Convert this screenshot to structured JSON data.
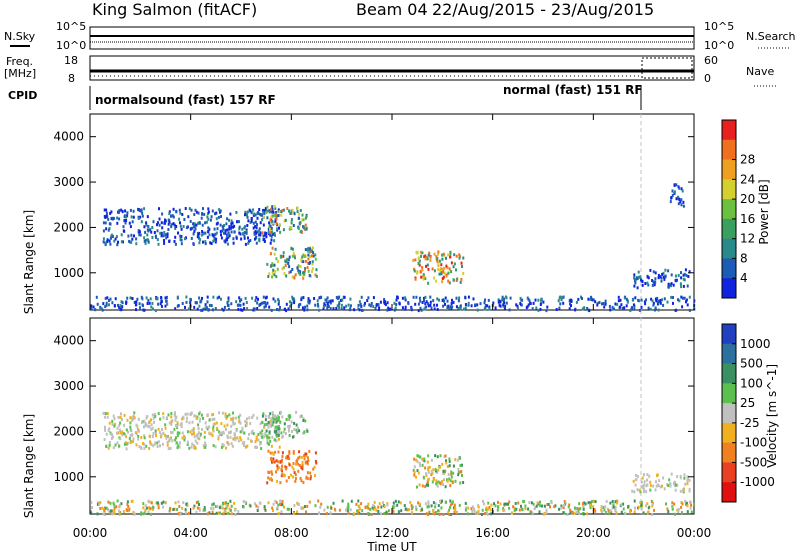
{
  "header": {
    "station": "King Salmon (fitACF)",
    "beam": "Beam 04",
    "dates": "22/Aug/2015 - 23/Aug/2015"
  },
  "left_labels": {
    "nsky": "N.Sky",
    "nsky_hi": "10^5",
    "nsky_lo": "10^0",
    "freq": "Freq.",
    "freq_unit": "[MHz]",
    "freq_hi": "18",
    "freq_lo": "8",
    "cpid": "CPID"
  },
  "right_labels": {
    "nsearch": "N.Search",
    "nsearch_hi": "10^5",
    "nsearch_lo": "10^0",
    "nave": "Nave",
    "nave_hi": "60",
    "nave_lo": "0"
  },
  "cpid_segments": [
    {
      "label": "normalsound (fast) 157 RF",
      "start_hour": 0
    },
    {
      "label": "normal (fast) 151 RF",
      "start_hour": 22
    }
  ],
  "chart_data": [
    {
      "type": "heatmap",
      "panel": "power",
      "ylabel": "Slant Range [km]",
      "xlabel": "Time UT",
      "x_ticks": [
        "00:00",
        "04:00",
        "08:00",
        "12:00",
        "16:00",
        "20:00",
        "00:00"
      ],
      "x_range_hours": [
        0,
        24
      ],
      "y_ticks": [
        1000,
        2000,
        3000,
        4000
      ],
      "ylim": [
        180,
        4500
      ],
      "colorbar": {
        "label": "Power [dB]",
        "ticks": [
          "4",
          "8",
          "12",
          "16",
          "20",
          "24",
          "28"
        ],
        "colors": [
          "#1024e0",
          "#1c5cb4",
          "#2a8a8a",
          "#3aa060",
          "#6cc040",
          "#d4d030",
          "#f0a020",
          "#f07020",
          "#e82020"
        ]
      },
      "regions": [
        {
          "hours": [
            0.5,
            7.5
          ],
          "km": [
            1650,
            2450
          ],
          "level": "low"
        },
        {
          "hours": [
            6.8,
            8.6
          ],
          "km": [
            1900,
            2500
          ],
          "level": "mid"
        },
        {
          "hours": [
            7.0,
            9.0
          ],
          "km": [
            900,
            1600
          ],
          "level": "mid"
        },
        {
          "hours": [
            12.8,
            14.8
          ],
          "km": [
            800,
            1500
          ],
          "level": "high"
        },
        {
          "hours": [
            21.5,
            23.8
          ],
          "km": [
            700,
            1100
          ],
          "level": "low"
        },
        {
          "hours": [
            23.0,
            23.6
          ],
          "km": [
            2500,
            3000
          ],
          "level": "low"
        },
        {
          "hours": [
            0.0,
            24.0
          ],
          "km": [
            200,
            500
          ],
          "level": "low"
        }
      ]
    },
    {
      "type": "heatmap",
      "panel": "velocity",
      "ylabel": "Slant Range [km]",
      "xlabel": "Time UT",
      "x_ticks": [
        "00:00",
        "04:00",
        "08:00",
        "12:00",
        "16:00",
        "20:00",
        "00:00"
      ],
      "x_range_hours": [
        0,
        24
      ],
      "y_ticks": [
        1000,
        2000,
        3000,
        4000
      ],
      "ylim": [
        180,
        4500
      ],
      "colorbar": {
        "label": "Velocity [m s^-1]",
        "ticks": [
          "1000",
          "500",
          "100",
          "25",
          "-25",
          "-100",
          "-500",
          "-1000"
        ],
        "colors": [
          "#2040c0",
          "#2c70a0",
          "#3a9060",
          "#5cc050",
          "#c0c0c0",
          "#f0b020",
          "#f08020",
          "#e84020",
          "#e01010"
        ]
      },
      "regions": [
        {
          "hours": [
            0.5,
            7.5
          ],
          "km": [
            1650,
            2450
          ],
          "level": "grey"
        },
        {
          "hours": [
            6.8,
            8.6
          ],
          "km": [
            1900,
            2500
          ],
          "level": "greenish"
        },
        {
          "hours": [
            7.0,
            9.0
          ],
          "km": [
            900,
            1600
          ],
          "level": "orange"
        },
        {
          "hours": [
            12.8,
            14.8
          ],
          "km": [
            800,
            1500
          ],
          "level": "green"
        },
        {
          "hours": [
            21.5,
            23.8
          ],
          "km": [
            700,
            1100
          ],
          "level": "grey"
        },
        {
          "hours": [
            0.0,
            24.0
          ],
          "km": [
            200,
            500
          ],
          "level": "mixed"
        }
      ]
    }
  ],
  "colors": {
    "axes": "#000000",
    "dashed_marker": "#c0c0c0"
  }
}
